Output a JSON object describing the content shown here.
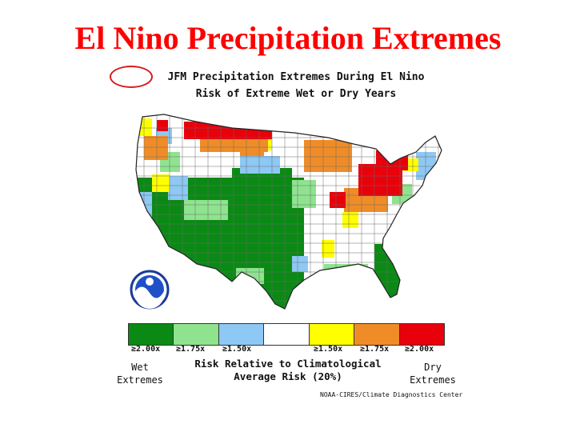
{
  "slide": {
    "title": "El Nino Precipitation Extremes"
  },
  "map": {
    "season": "JFM",
    "title_rest": "Precipitation Extremes During El Nino",
    "subtitle": "Risk of Extreme Wet or Dry Years",
    "logo": "noaa-logo"
  },
  "legend": {
    "swatches": [
      {
        "color": "#0a8a14",
        "label": "≥2.00x"
      },
      {
        "color": "#8fe38f",
        "label": "≥1.75x"
      },
      {
        "color": "#8ec8f4",
        "label": "≥1.50x"
      },
      {
        "color": "#ffffff",
        "label": ""
      },
      {
        "color": "#ffff00",
        "label": "≥1.50x"
      },
      {
        "color": "#f08c28",
        "label": "≥1.75x"
      },
      {
        "color": "#e8000a",
        "label": "≥2.00x"
      }
    ],
    "wet_line1": "Wet",
    "wet_line2": "Extremes",
    "dry_line1": "Dry",
    "dry_line2": "Extremes",
    "caption_line1": "Risk Relative to Climatological",
    "caption_line2": "Average Risk (20%)"
  },
  "credit": "NOAA-CIRES/Climate Diagnostics Center"
}
